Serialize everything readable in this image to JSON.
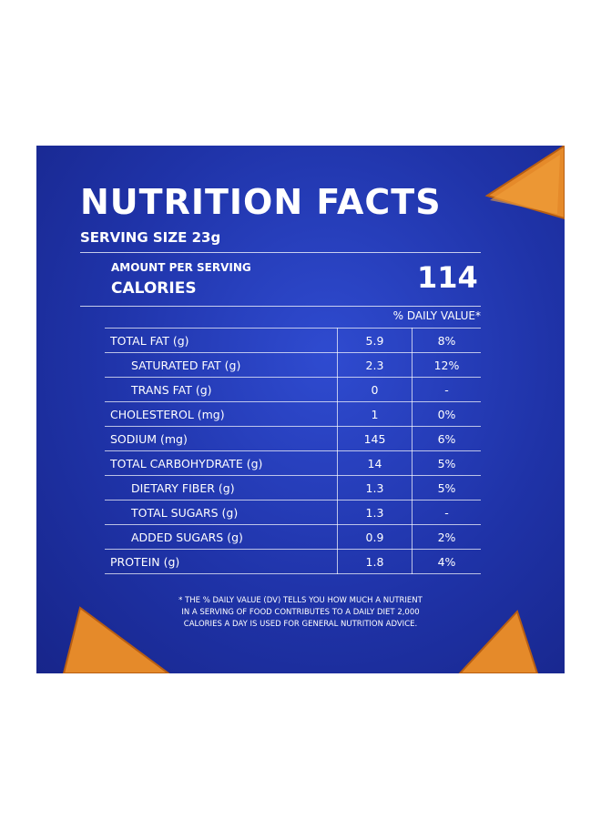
{
  "panel": {
    "title": "NUTRITION FACTS",
    "serving_size": "SERVING SIZE 23g",
    "amount_per_serving": "AMOUNT PER SERVING",
    "calories_label": "CALORIES",
    "calories_value": "114",
    "daily_value_header": "% DAILY VALUE*",
    "table": {
      "rows": [
        [
          "TOTAL FAT (g)",
          "5.9",
          "8%"
        ],
        [
          "SATURATED FAT (g)",
          "2.3",
          "12%"
        ],
        [
          "TRANS FAT (g)",
          "0",
          "-"
        ],
        [
          "CHOLESTEROL (mg)",
          "1",
          "0%"
        ],
        [
          "SODIUM (mg)",
          "145",
          "6%"
        ],
        [
          "TOTAL CARBOHYDRATE (g)",
          "14",
          "5%"
        ],
        [
          "DIETARY FIBER (g)",
          "1.3",
          "5%"
        ],
        [
          "TOTAL SUGARS (g)",
          "1.3",
          "-"
        ],
        [
          "ADDED SUGARS (g)",
          "0.9",
          "2%"
        ],
        [
          "PROTEIN (g)",
          "1.8",
          "4%"
        ]
      ]
    },
    "footnote": [
      "* THE % DAILY VALUE (DV) TELLS YOU HOW MUCH A NUTRIENT",
      "IN A SERVING OF FOOD CONTRIBUTES TO A DAILY DIET 2,000",
      "CALORIES A DAY IS USED FOR GENERAL NUTRITION ADVICE."
    ]
  }
}
